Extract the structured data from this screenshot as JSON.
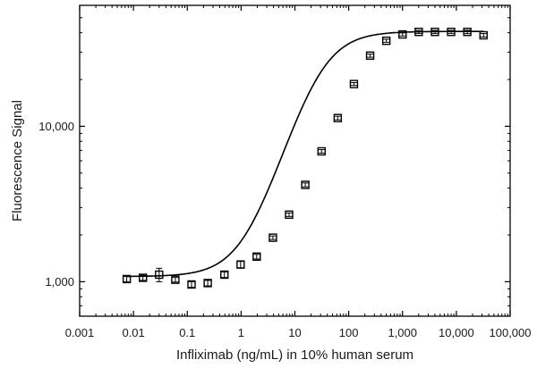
{
  "chart_data": {
    "type": "scatter",
    "title": "",
    "xlabel": "Infliximab (ng/mL) in 10% human serum",
    "ylabel": "Fluorescence Signal",
    "xscale": "log",
    "yscale": "log",
    "xlim": [
      0.001,
      100000
    ],
    "ylim": [
      600,
      60000
    ],
    "grid": false,
    "legend": "none",
    "x_ticks": [
      {
        "value": 0.001,
        "label": "0.001"
      },
      {
        "value": 0.01,
        "label": "0.01"
      },
      {
        "value": 0.1,
        "label": "0.1"
      },
      {
        "value": 1,
        "label": "1"
      },
      {
        "value": 10,
        "label": "10"
      },
      {
        "value": 100,
        "label": "100"
      },
      {
        "value": 1000,
        "label": "1,000"
      },
      {
        "value": 10000,
        "label": "10,000"
      },
      {
        "value": 100000,
        "label": "100,000"
      }
    ],
    "y_ticks": [
      {
        "value": 1000,
        "label": "1,000"
      },
      {
        "value": 10000,
        "label": "10,000"
      }
    ],
    "series": [
      {
        "marker": "open-square",
        "x": [
          0.0075,
          0.015,
          0.03,
          0.06,
          0.12,
          0.24,
          0.49,
          0.98,
          1.95,
          3.9,
          7.8,
          15.6,
          31.3,
          62.5,
          125,
          250,
          500,
          1000,
          2000,
          4000,
          8000,
          16000,
          32000
        ],
        "y": [
          1040,
          1060,
          1110,
          1030,
          960,
          980,
          1110,
          1290,
          1450,
          1920,
          2700,
          4200,
          6900,
          11300,
          18700,
          28500,
          35500,
          39000,
          40500,
          40500,
          40500,
          40500,
          38500
        ],
        "y_err": [
          40,
          40,
          110,
          35,
          40,
          40,
          45,
          60,
          50,
          50,
          70,
          120,
          180,
          300,
          400,
          700,
          800,
          900,
          900,
          900,
          900,
          1000,
          1000
        ]
      }
    ],
    "fit": {
      "type": "four-parameter logistic",
      "bottom": 1080,
      "top": 40800,
      "ec50": 27,
      "hill": 1.2
    },
    "color": "#000000"
  }
}
